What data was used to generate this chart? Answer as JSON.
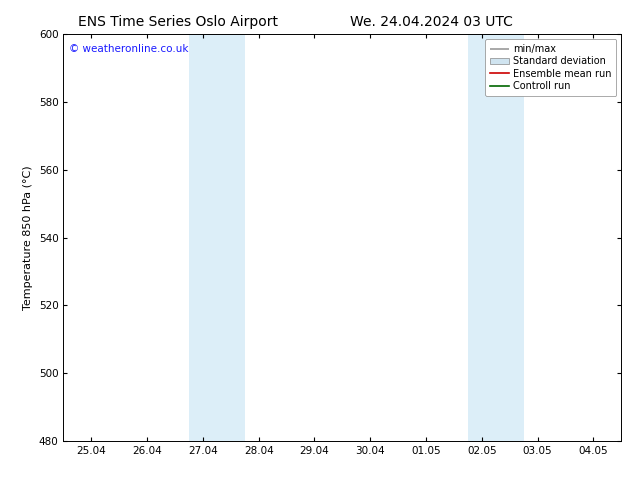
{
  "title_left": "ENS Time Series Oslo Airport",
  "title_right": "We. 24.04.2024 03 UTC",
  "ylabel": "Temperature 850 hPa (°C)",
  "ylim": [
    480,
    600
  ],
  "yticks": [
    480,
    500,
    520,
    540,
    560,
    580,
    600
  ],
  "xtick_labels": [
    "25.04",
    "26.04",
    "27.04",
    "28.04",
    "29.04",
    "30.04",
    "01.05",
    "02.05",
    "03.05",
    "04.05"
  ],
  "shaded_regions": [
    {
      "xstart": 1.75,
      "xend": 2.25,
      "color": "#dceef8"
    },
    {
      "xstart": 2.25,
      "xend": 2.75,
      "color": "#dceef8"
    },
    {
      "xstart": 6.75,
      "xend": 7.25,
      "color": "#dceef8"
    },
    {
      "xstart": 7.25,
      "xend": 7.75,
      "color": "#dceef8"
    }
  ],
  "legend_items": [
    {
      "label": "min/max",
      "color": "#999999",
      "lw": 1.2,
      "style": "minmax"
    },
    {
      "label": "Standard deviation",
      "color": "#d0e4f0",
      "style": "fill"
    },
    {
      "label": "Ensemble mean run",
      "color": "#cc0000",
      "lw": 1.2,
      "style": "line"
    },
    {
      "label": "Controll run",
      "color": "#006600",
      "lw": 1.2,
      "style": "line"
    }
  ],
  "watermark": "© weatheronline.co.uk",
  "watermark_color": "#1a1aff",
  "background_color": "#ffffff",
  "plot_bg_color": "#ffffff",
  "title_fontsize": 10,
  "ylabel_fontsize": 8,
  "tick_fontsize": 7.5,
  "legend_fontsize": 7,
  "watermark_fontsize": 7.5
}
